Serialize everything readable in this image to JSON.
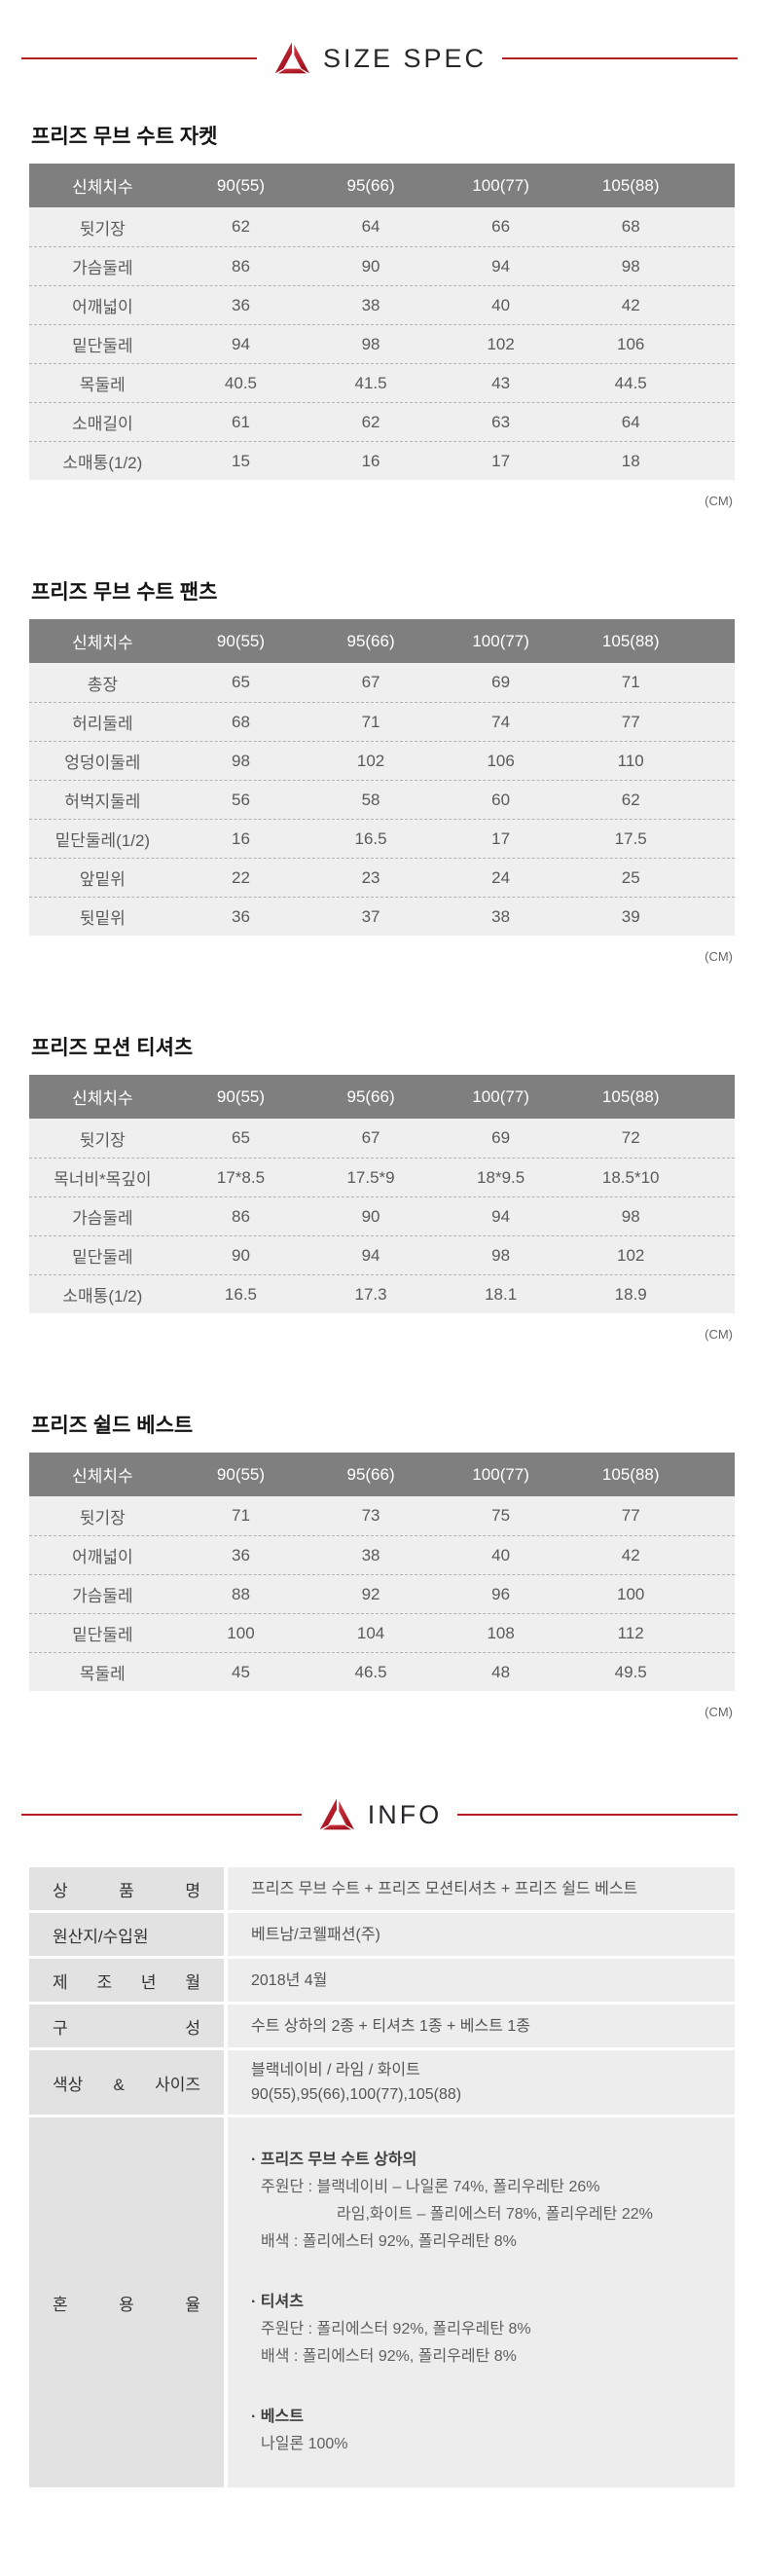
{
  "header": {
    "size_spec_title": "SIZE SPEC",
    "info_title": "INFO"
  },
  "unit_label": "(CM)",
  "colors": {
    "accent_red": "#b41f24",
    "logo_red_light": "#d43a45",
    "logo_red_dark": "#9e0e1b",
    "table_header_bg": "#7f7f7f",
    "table_row_bg": "#efefef",
    "info_label_bg": "#e2e2e2",
    "info_value_bg": "#ededed"
  },
  "size_header": [
    "신체치수",
    "90(55)",
    "95(66)",
    "100(77)",
    "105(88)"
  ],
  "tables": [
    {
      "title": "프리즈 무브 수트 자켓",
      "rows": [
        {
          "label": "뒷기장",
          "values": [
            "62",
            "64",
            "66",
            "68"
          ]
        },
        {
          "label": "가슴둘레",
          "values": [
            "86",
            "90",
            "94",
            "98"
          ]
        },
        {
          "label": "어깨넓이",
          "values": [
            "36",
            "38",
            "40",
            "42"
          ]
        },
        {
          "label": "밑단둘레",
          "values": [
            "94",
            "98",
            "102",
            "106"
          ]
        },
        {
          "label": "목둘레",
          "values": [
            "40.5",
            "41.5",
            "43",
            "44.5"
          ]
        },
        {
          "label": "소매길이",
          "values": [
            "61",
            "62",
            "63",
            "64"
          ]
        },
        {
          "label": "소매통(1/2)",
          "values": [
            "15",
            "16",
            "17",
            "18"
          ]
        }
      ]
    },
    {
      "title": "프리즈 무브 수트 팬츠",
      "rows": [
        {
          "label": "총장",
          "values": [
            "65",
            "67",
            "69",
            "71"
          ]
        },
        {
          "label": "허리둘레",
          "values": [
            "68",
            "71",
            "74",
            "77"
          ]
        },
        {
          "label": "엉덩이둘레",
          "values": [
            "98",
            "102",
            "106",
            "110"
          ]
        },
        {
          "label": "허벅지둘레",
          "values": [
            "56",
            "58",
            "60",
            "62"
          ]
        },
        {
          "label": "밑단둘레(1/2)",
          "values": [
            "16",
            "16.5",
            "17",
            "17.5"
          ]
        },
        {
          "label": "앞밑위",
          "values": [
            "22",
            "23",
            "24",
            "25"
          ]
        },
        {
          "label": "뒷밑위",
          "values": [
            "36",
            "37",
            "38",
            "39"
          ]
        }
      ]
    },
    {
      "title": "프리즈 모션 티셔츠",
      "rows": [
        {
          "label": "뒷기장",
          "values": [
            "65",
            "67",
            "69",
            "72"
          ]
        },
        {
          "label": "목너비*목깊이",
          "values": [
            "17*8.5",
            "17.5*9",
            "18*9.5",
            "18.5*10"
          ]
        },
        {
          "label": "가슴둘레",
          "values": [
            "86",
            "90",
            "94",
            "98"
          ]
        },
        {
          "label": "밑단둘레",
          "values": [
            "90",
            "94",
            "98",
            "102"
          ]
        },
        {
          "label": "소매통(1/2)",
          "values": [
            "16.5",
            "17.3",
            "18.1",
            "18.9"
          ]
        }
      ]
    },
    {
      "title": "프리즈 쉴드 베스트",
      "rows": [
        {
          "label": "뒷기장",
          "values": [
            "71",
            "73",
            "75",
            "77"
          ]
        },
        {
          "label": "어깨넓이",
          "values": [
            "36",
            "38",
            "40",
            "42"
          ]
        },
        {
          "label": "가슴둘레",
          "values": [
            "88",
            "92",
            "96",
            "100"
          ]
        },
        {
          "label": "밑단둘레",
          "values": [
            "100",
            "104",
            "108",
            "112"
          ]
        },
        {
          "label": "목둘레",
          "values": [
            "45",
            "46.5",
            "48",
            "49.5"
          ]
        }
      ]
    }
  ],
  "info": {
    "rows": [
      {
        "label": "상 품 명",
        "lines": [
          "프리즈 무브 수트 + 프리즈 모션티셔츠 + 프리즈 쉴드 베스트"
        ]
      },
      {
        "label": "원산지/수입원",
        "lines": [
          "베트남/코웰패션(주)"
        ]
      },
      {
        "label": "제 조 년 월",
        "lines": [
          "2018년 4월"
        ]
      },
      {
        "label": "구 성",
        "lines": [
          "수트 상하의 2종 + 티셔츠 1종 + 베스트 1종"
        ]
      },
      {
        "label": "색상 & 사이즈",
        "lines": [
          "블랙네이비 / 라임 / 화이트",
          "90(55),95(66),100(77),105(88)"
        ]
      }
    ],
    "blend": {
      "label": "혼 용 율",
      "blocks": [
        {
          "heading": "· 프리즈 무브 수트 상하의",
          "lines": [
            {
              "text": "주원단 : 블랙네이비 – 나일론 74%, 폴리우레탄 26%",
              "indent": 0
            },
            {
              "text": "라임,화이트 – 폴리에스터 78%, 폴리우레탄 22%",
              "indent": 1
            },
            {
              "text": "배색 : 폴리에스터 92%, 폴리우레탄 8%",
              "indent": 0
            }
          ]
        },
        {
          "heading": "· 티셔츠",
          "lines": [
            {
              "text": "주원단 : 폴리에스터 92%, 폴리우레탄 8%",
              "indent": 0
            },
            {
              "text": "배색 : 폴리에스터 92%, 폴리우레탄 8%",
              "indent": 0
            }
          ]
        },
        {
          "heading": "· 베스트",
          "lines": [
            {
              "text": "나일론 100%",
              "indent": 0
            }
          ]
        }
      ]
    }
  }
}
